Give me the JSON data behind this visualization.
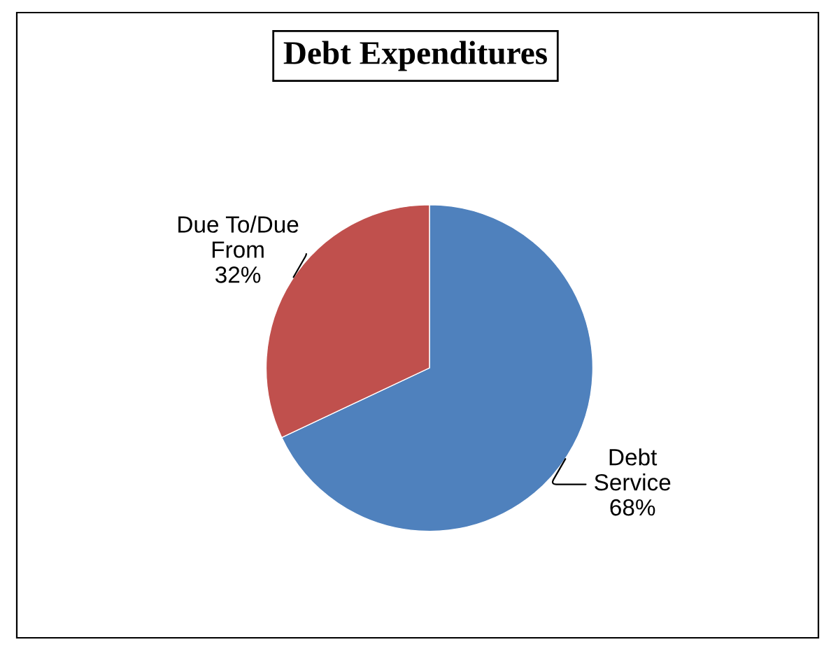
{
  "chart_data": {
    "type": "pie",
    "title": "Debt Expenditures",
    "categories": [
      "Debt Service",
      "Due To/Due From"
    ],
    "values": [
      68,
      32
    ],
    "colors": [
      "#4f81bd",
      "#c0504d"
    ],
    "value_labels": [
      "68%",
      "32%"
    ],
    "legend": false
  }
}
